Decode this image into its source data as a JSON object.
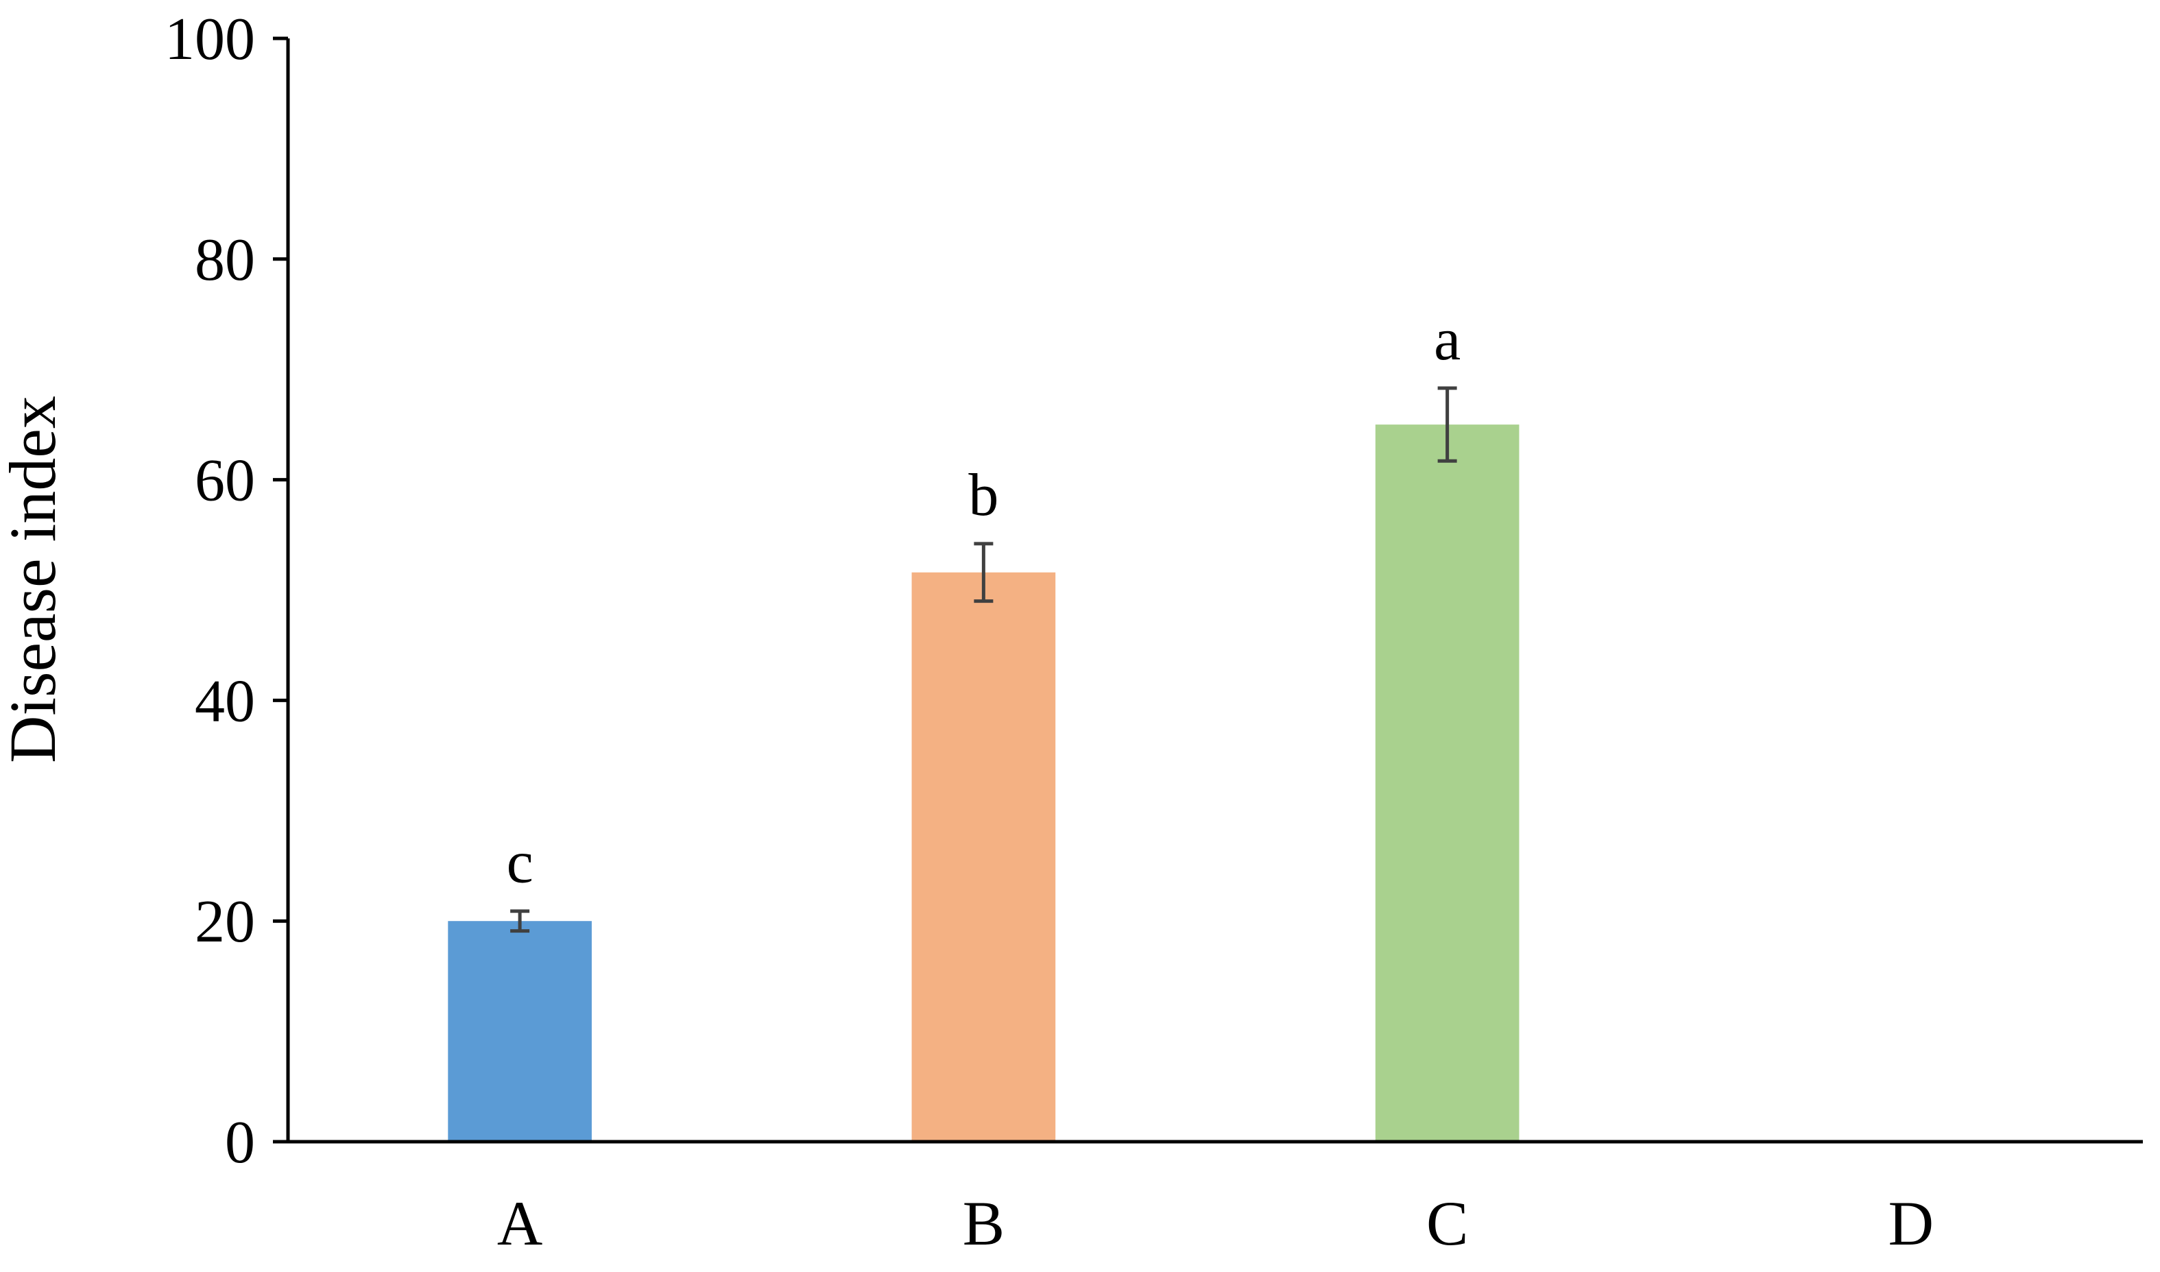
{
  "chart_data": {
    "type": "bar",
    "title": "",
    "xlabel": "",
    "ylabel": "Disease index",
    "ylim": [
      0,
      100
    ],
    "yticks": [
      0,
      20,
      40,
      60,
      80,
      100
    ],
    "categories": [
      "A",
      "B",
      "C",
      "D"
    ],
    "values": [
      20.0,
      51.6,
      65.0,
      0
    ],
    "errors": [
      0.9,
      2.6,
      3.3,
      null
    ],
    "significance_labels": [
      "c",
      "b",
      "a",
      ""
    ],
    "colors": [
      "#5B9BD5",
      "#F4B183",
      "#A9D18E",
      "#ffffff"
    ],
    "grid": false,
    "legend": "none"
  }
}
